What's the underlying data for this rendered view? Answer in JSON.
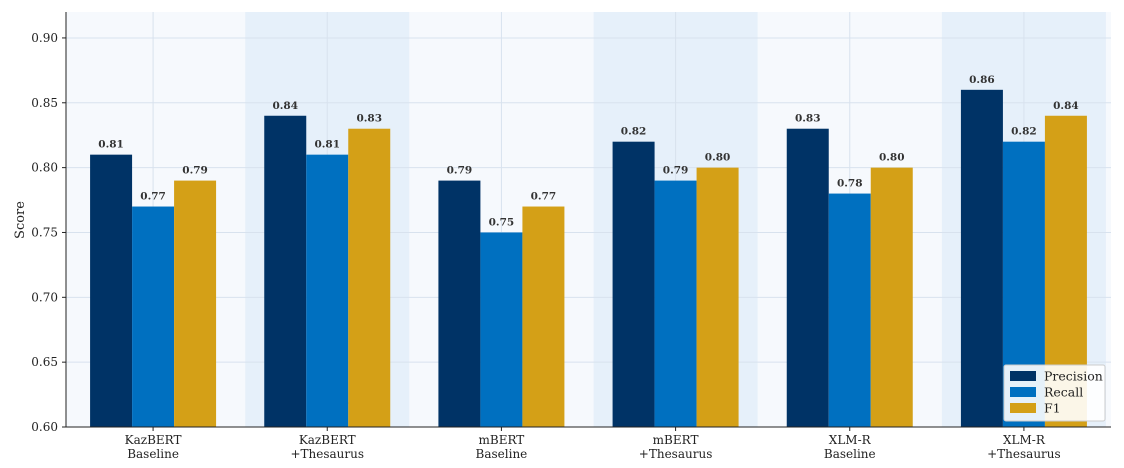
{
  "chart_data": {
    "type": "bar",
    "ylabel": "Score",
    "xlabel": "",
    "ylim": [
      0.6,
      0.92
    ],
    "yticks": [
      "0.60",
      "0.65",
      "0.70",
      "0.75",
      "0.80",
      "0.85",
      "0.90"
    ],
    "grid": true,
    "legend_position": "bottom-right",
    "categories": [
      [
        "KazBERT",
        "Baseline"
      ],
      [
        "KazBERT",
        "+Thesaurus"
      ],
      [
        "mBERT",
        "Baseline"
      ],
      [
        "mBERT",
        "+Thesaurus"
      ],
      [
        "XLM-R",
        "Baseline"
      ],
      [
        "XLM-R",
        "+Thesaurus"
      ]
    ],
    "highlighted_categories": [
      1,
      3,
      5
    ],
    "overlay_text": "+ Thesaurus",
    "series": [
      {
        "name": "Precision",
        "color": "#003366",
        "values": [
          0.81,
          0.84,
          0.79,
          0.82,
          0.83,
          0.86
        ],
        "labels": [
          "0.81",
          "0.84",
          "0.79",
          "0.82",
          "0.83",
          "0.86"
        ]
      },
      {
        "name": "Recall",
        "color": "#0070C0",
        "values": [
          0.77,
          0.81,
          0.75,
          0.79,
          0.78,
          0.82
        ],
        "labels": [
          "0.77",
          "0.81",
          "0.75",
          "0.79",
          "0.78",
          "0.82"
        ]
      },
      {
        "name": "F1",
        "color": "#D4A017",
        "values": [
          0.79,
          0.83,
          0.77,
          0.8,
          0.8,
          0.84
        ],
        "labels": [
          "0.79",
          "0.83",
          "0.77",
          "0.80",
          "0.80",
          "0.84"
        ]
      }
    ]
  }
}
